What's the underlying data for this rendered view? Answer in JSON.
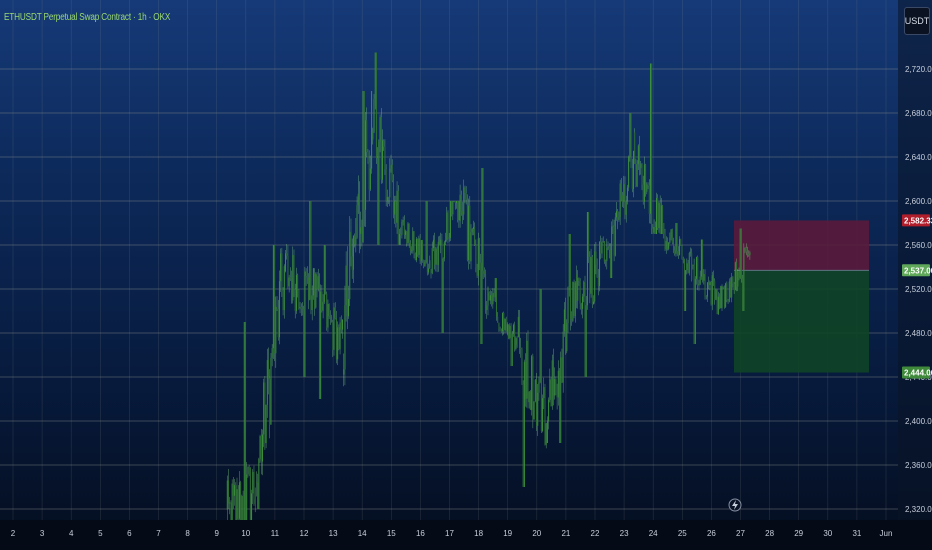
{
  "header": {
    "title": "ETHUSDT Perpetual Swap Contract · 1h · OKX",
    "currency": "USDT"
  },
  "colors": {
    "up": "#3b8f3b",
    "down": "#2d6e32",
    "wick": "#7fd17f",
    "stop_zone": "#5a1b3c",
    "target_zone": "#0f4426",
    "stop_tag": "#b01e2c",
    "entry_tag": "#5fa85a",
    "target_tag": "#3f8a3a"
  },
  "chart_data": {
    "type": "candlestick",
    "title": "ETHUSDT Perpetual Swap Contract · 1h · OKX",
    "ylim": [
      2300,
      2740
    ],
    "y_ticks": [
      "2,320.00",
      "2,360.00",
      "2,400.00",
      "2,440.00",
      "2,480.00",
      "2,520.00",
      "2,560.00",
      "2,600.00",
      "2,640.00",
      "2,680.00",
      "2,720.00"
    ],
    "x_ticks": [
      "2",
      "3",
      "4",
      "5",
      "6",
      "7",
      "8",
      "9",
      "10",
      "11",
      "12",
      "13",
      "14",
      "15",
      "16",
      "17",
      "18",
      "19",
      "20",
      "21",
      "22",
      "23",
      "24",
      "25",
      "26",
      "27",
      "28",
      "29",
      "30",
      "31",
      "Jun"
    ],
    "grid": true,
    "series": [
      {
        "x": [
          "May 9",
          "May 10",
          "May 11",
          "May 12",
          "May 13",
          "May 14",
          "May 15",
          "May 16",
          "May 17",
          "May 18",
          "May 19",
          "May 20",
          "May 21",
          "May 22",
          "May 23",
          "May 24",
          "May 25",
          "May 26"
        ],
        "open": [
          2310,
          2340,
          2535,
          2515,
          2470,
          2680,
          2580,
          2540,
          2600,
          2510,
          2470,
          2400,
          2520,
          2540,
          2640,
          2570,
          2540,
          2510
        ],
        "high": [
          2490,
          2560,
          2600,
          2560,
          2700,
          2735,
          2600,
          2600,
          2630,
          2530,
          2520,
          2570,
          2590,
          2680,
          2725,
          2580,
          2565,
          2575
        ],
        "low": [
          2290,
          2320,
          2440,
          2420,
          2400,
          2560,
          2520,
          2480,
          2470,
          2450,
          2340,
          2380,
          2440,
          2530,
          2570,
          2500,
          2470,
          2500
        ],
        "close": [
          2340,
          2535,
          2515,
          2470,
          2680,
          2580,
          2540,
          2600,
          2510,
          2470,
          2400,
          2520,
          2540,
          2640,
          2570,
          2540,
          2510,
          2555
        ]
      }
    ],
    "position": {
      "stop_price": 2582.33,
      "entry_price": 2537.0,
      "target_price": 2444.06,
      "stop_label": "2,582.33",
      "entry_label": "2,537.00",
      "target_label": "2,444.06"
    }
  }
}
